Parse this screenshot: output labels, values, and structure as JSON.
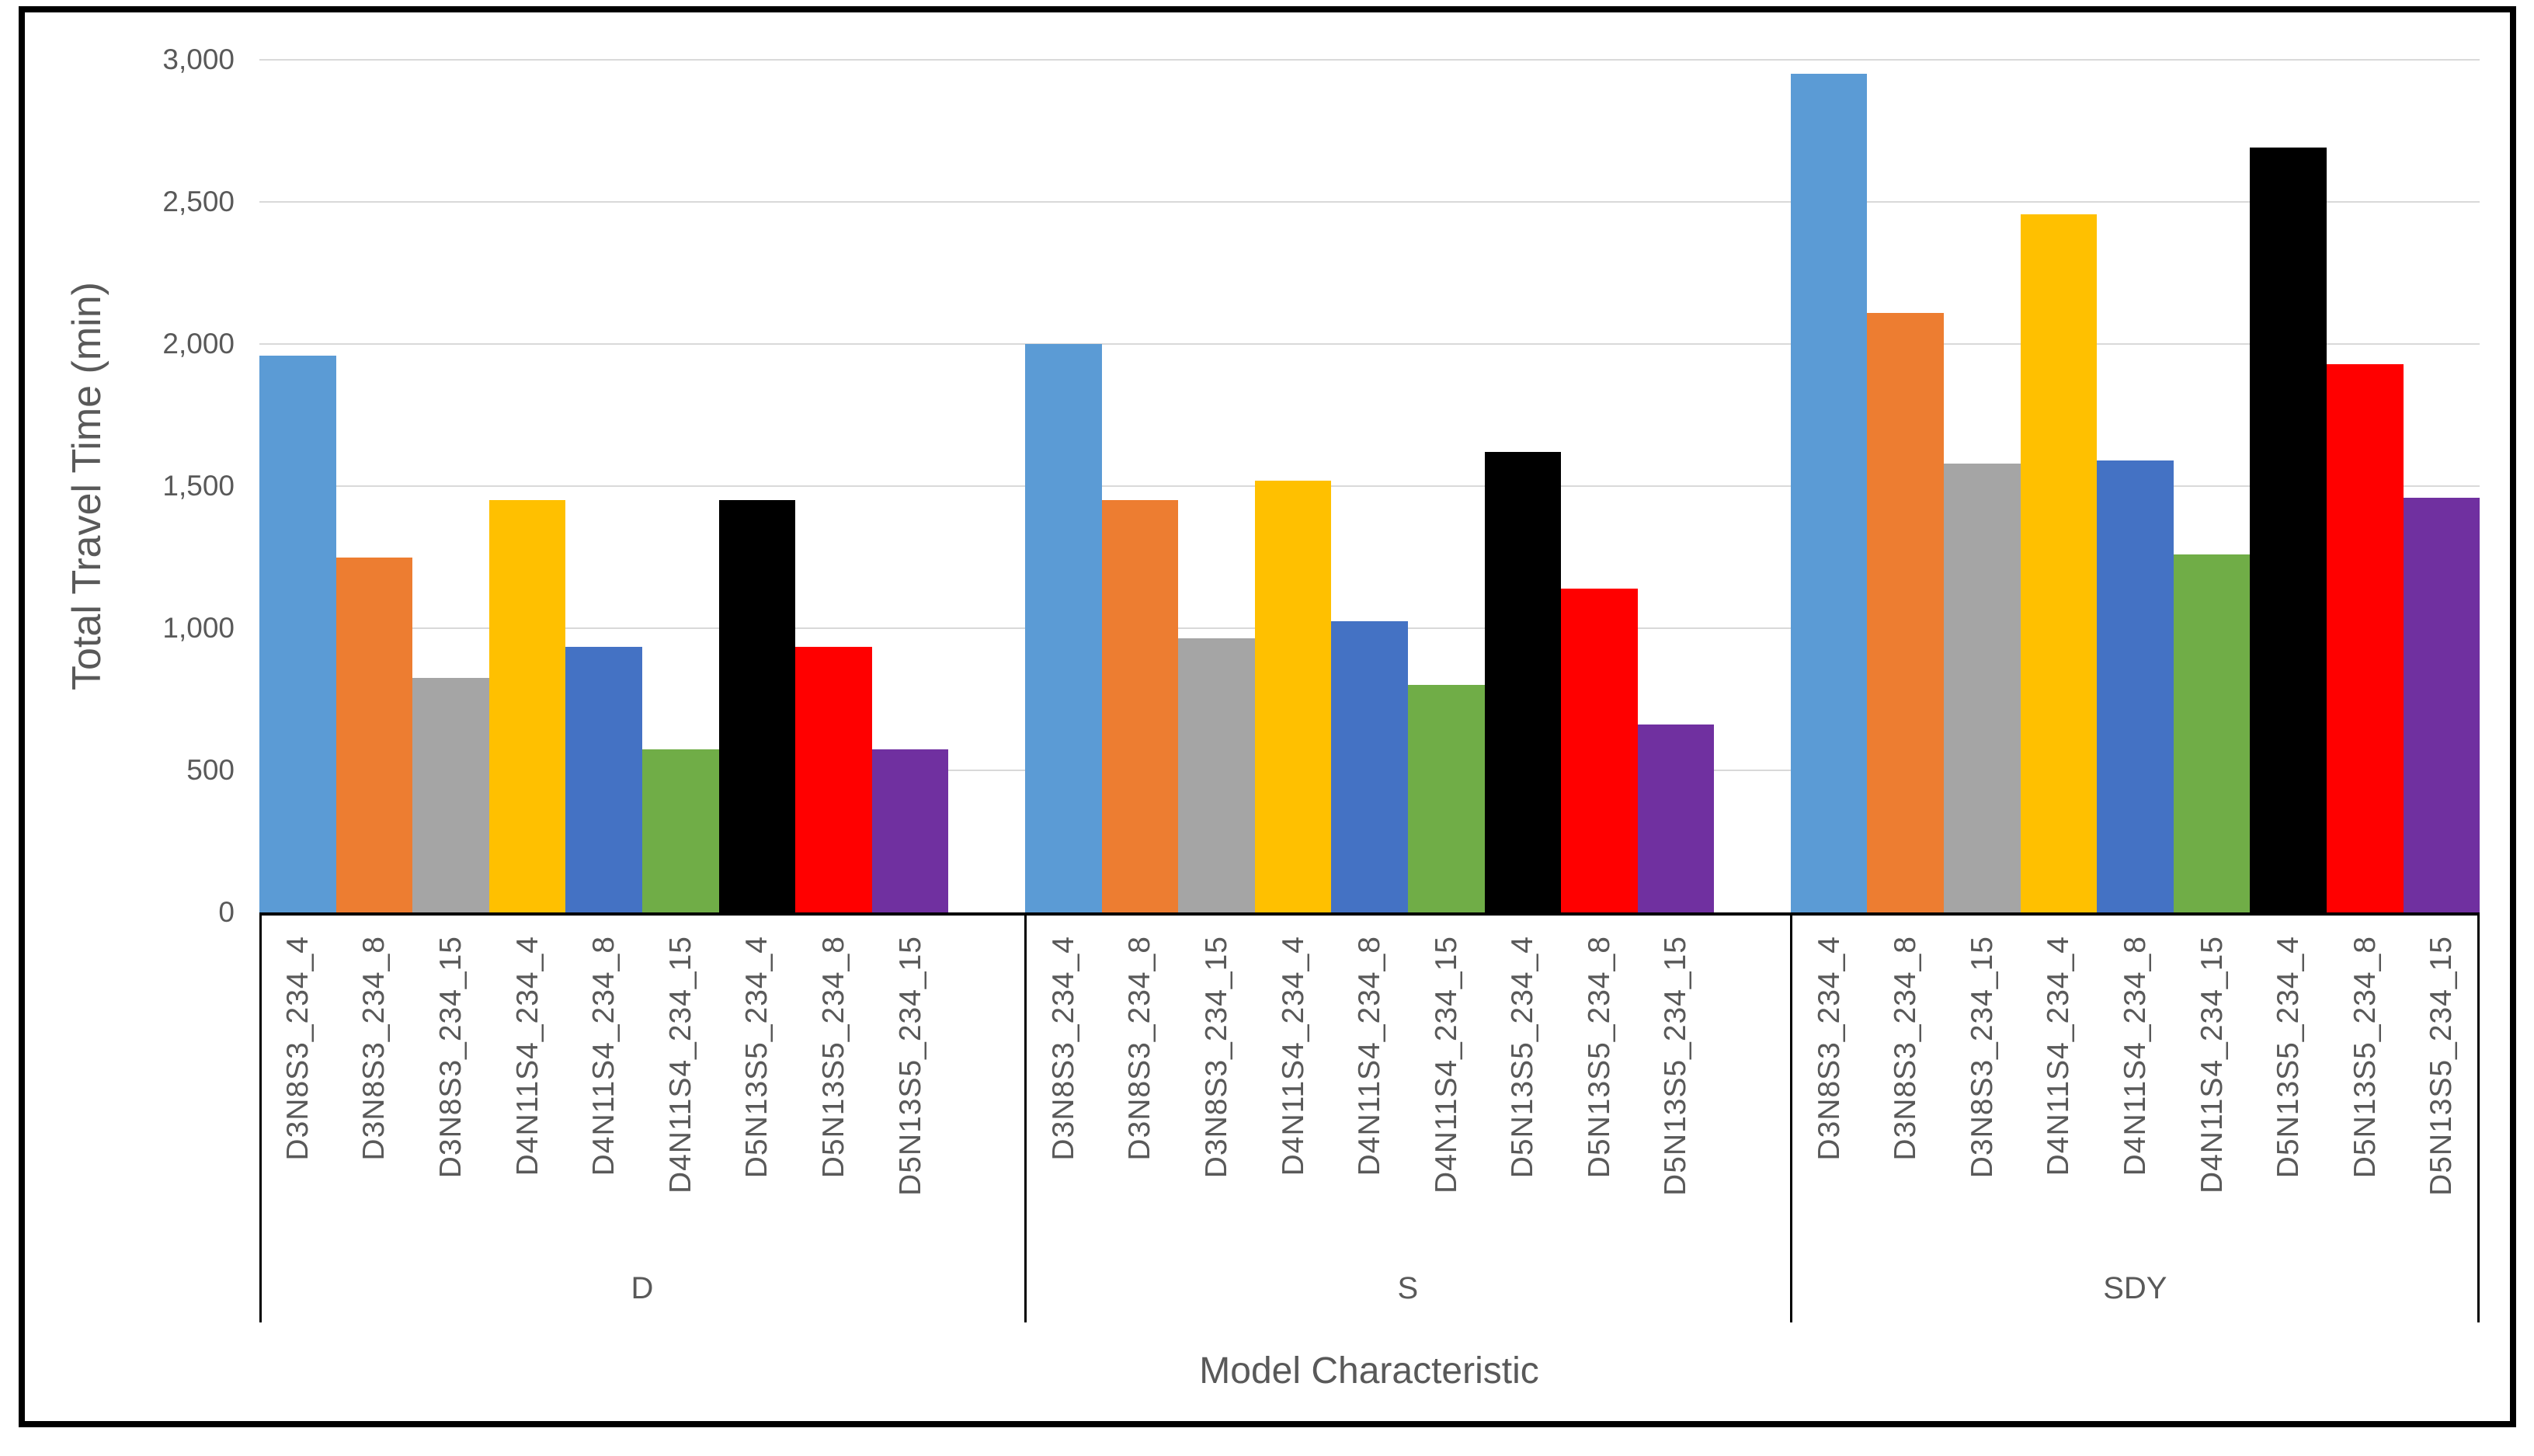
{
  "chart": {
    "y_axis_title": "Total Travel Time (min)",
    "x_axis_title": "Model Characteristic",
    "y_ticks": [
      "3,000",
      "2,500",
      "2,000",
      "1,500",
      "1,000",
      "500",
      "0"
    ],
    "text_color": "#595959",
    "gridline_color": "#D9D9D9",
    "axis_color": "#000000"
  },
  "chart_data": {
    "type": "bar",
    "title": "",
    "xlabel": "Model Characteristic",
    "ylabel": "Total Travel Time (min)",
    "ylim": [
      0,
      3000
    ],
    "ytick_step": 500,
    "grid": true,
    "legend": false,
    "group_labels": [
      "D",
      "S",
      "SDY"
    ],
    "bar_labels": [
      "D3N8S3_234_4",
      "D3N8S3_234_8",
      "D3N8S3_234_15",
      "D4N11S4_234_4",
      "D4N11S4_234_8",
      "D4N11S4_234_15",
      "D5N13S5_234_4",
      "D5N13S5_234_8",
      "D5N13S5_234_15"
    ],
    "bar_colors": [
      "#5B9BD5",
      "#ED7D31",
      "#A5A5A5",
      "#FFC000",
      "#4472C4",
      "#70AD47",
      "#000000",
      "#FF0000",
      "#7030A0"
    ],
    "series": [
      {
        "group": "D",
        "values": [
          1960,
          1250,
          825,
          1450,
          935,
          575,
          1450,
          935,
          575
        ]
      },
      {
        "group": "S",
        "values": [
          2000,
          1450,
          965,
          1520,
          1025,
          800,
          1620,
          1140,
          660
        ]
      },
      {
        "group": "SDY",
        "values": [
          2950,
          2110,
          1580,
          2455,
          1590,
          1260,
          2690,
          1930,
          1460
        ]
      }
    ]
  }
}
